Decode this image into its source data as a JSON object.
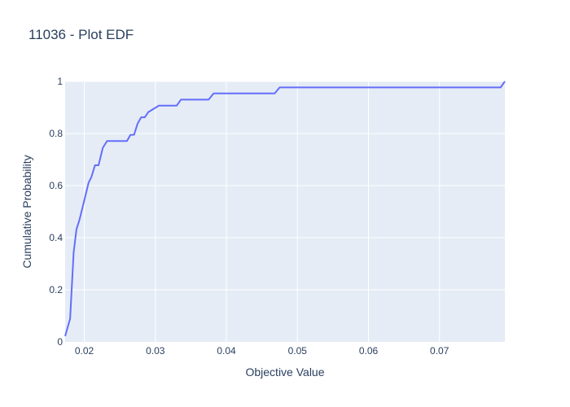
{
  "chart_data": {
    "type": "line",
    "title": "11036 - Plot EDF",
    "xlabel": "Objective Value",
    "ylabel": "Cumulative Probability",
    "xlim": [
      0.0173,
      0.0792
    ],
    "ylim": [
      0,
      1
    ],
    "x_ticks": [
      0.02,
      0.03,
      0.04,
      0.05,
      0.06,
      0.07
    ],
    "x_tick_labels": [
      "0.02",
      "0.03",
      "0.04",
      "0.05",
      "0.06",
      "0.07"
    ],
    "y_ticks": [
      0,
      0.2,
      0.4,
      0.6,
      0.8,
      1
    ],
    "y_tick_labels": [
      "0",
      "0.2",
      "0.4",
      "0.6",
      "0.8",
      "1"
    ],
    "grid": true,
    "colors": {
      "plot_background": "#e5ecf6",
      "grid": "#ffffff",
      "line": "#636efa",
      "text": "#2a3f5f"
    },
    "series": [
      {
        "x": [
          0.0173,
          0.018,
          0.0185,
          0.0189,
          0.0193,
          0.0197,
          0.0201,
          0.0206,
          0.021,
          0.0215,
          0.022,
          0.0226,
          0.0232,
          0.0238,
          0.026,
          0.0265,
          0.027,
          0.0275,
          0.028,
          0.0285,
          0.029,
          0.0305,
          0.033,
          0.0336,
          0.0375,
          0.0382,
          0.0468,
          0.0475,
          0.0786,
          0.0792
        ],
        "y": [
          0.022,
          0.089,
          0.344,
          0.433,
          0.467,
          0.511,
          0.555,
          0.611,
          0.633,
          0.678,
          0.678,
          0.745,
          0.771,
          0.771,
          0.771,
          0.795,
          0.795,
          0.838,
          0.862,
          0.862,
          0.882,
          0.907,
          0.907,
          0.93,
          0.93,
          0.954,
          0.954,
          0.977,
          0.977,
          1.0
        ]
      }
    ]
  }
}
